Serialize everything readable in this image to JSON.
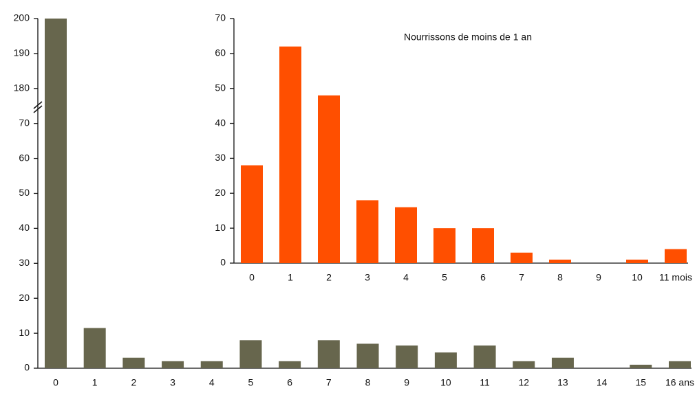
{
  "chart_data": [
    {
      "type": "bar",
      "categories": [
        "0",
        "1",
        "2",
        "3",
        "4",
        "5",
        "6",
        "7",
        "8",
        "9",
        "10",
        "11",
        "12",
        "13",
        "14",
        "15",
        "16 ans"
      ],
      "values": [
        200,
        11.5,
        3,
        2,
        2,
        8,
        2,
        8,
        7,
        6.5,
        4.5,
        6.5,
        2,
        3,
        0,
        1,
        2
      ],
      "color": "#67664d",
      "ylim": [
        0,
        200
      ],
      "yticks": [
        0,
        10,
        20,
        30,
        40,
        50,
        60,
        70,
        180,
        190,
        200
      ],
      "axis_break": [
        70,
        180
      ]
    },
    {
      "type": "bar",
      "title": "Nourrissons de moins de 1 an",
      "categories": [
        "0",
        "1",
        "2",
        "3",
        "4",
        "5",
        "6",
        "7",
        "8",
        "9",
        "10",
        "11 mois"
      ],
      "values": [
        28,
        62,
        48,
        18,
        16,
        10,
        10,
        3,
        1,
        0,
        1,
        4
      ],
      "color": "#ff4f00",
      "ylim": [
        0,
        70
      ],
      "yticks": [
        0,
        10,
        20,
        30,
        40,
        50,
        60,
        70
      ]
    }
  ]
}
